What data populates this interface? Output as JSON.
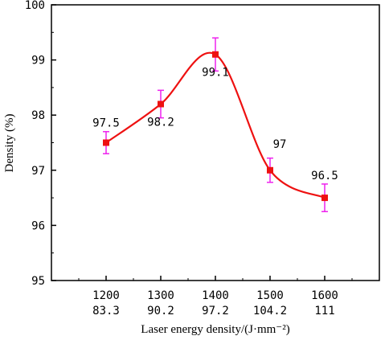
{
  "colors": {
    "line": "#ee1111",
    "marker": "#ee1111",
    "error_bar": "#ee22ee",
    "axis": "#000000"
  },
  "chart_data": {
    "type": "line",
    "title": "",
    "xlabel": "Laser energy density/(J·mm⁻²)",
    "ylabel": "Density (%)",
    "ylim": [
      95,
      100
    ],
    "xlim": [
      1100,
      1700
    ],
    "yticks": [
      95,
      96,
      97,
      98,
      99,
      100
    ],
    "x": [
      1200,
      1300,
      1400,
      1500,
      1600
    ],
    "x_tick_labels_line1": [
      "1200",
      "1300",
      "1400",
      "1500",
      "1600"
    ],
    "x_tick_labels_line2": [
      "83.3",
      "90.2",
      "97.2",
      "104.2",
      "111"
    ],
    "series": [
      {
        "values": [
          97.5,
          98.2,
          99.1,
          97.0,
          96.5
        ],
        "error": [
          0.2,
          0.25,
          0.3,
          0.22,
          0.25
        ],
        "smoothed": true,
        "marker": "square"
      }
    ],
    "data_labels": [
      "97.5",
      "98.2",
      "99.1",
      "97",
      "96.5"
    ],
    "grid": false,
    "legend": "none"
  }
}
